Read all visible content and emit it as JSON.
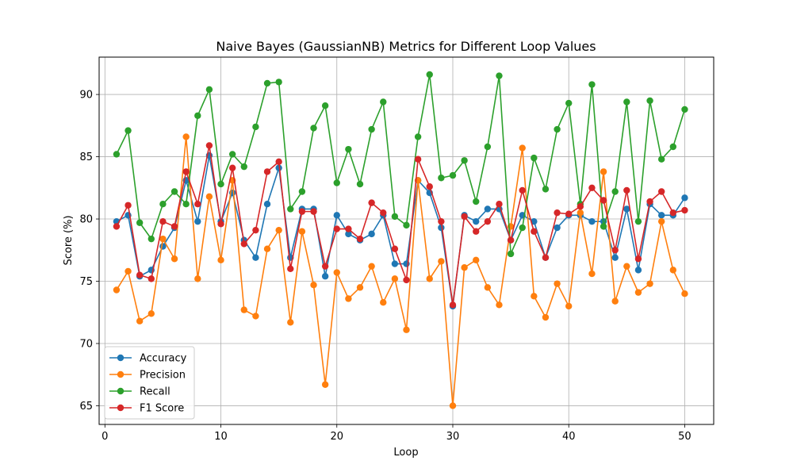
{
  "chart_data": {
    "type": "line",
    "title": "Naive Bayes (GaussianNB) Metrics for Different Loop Values",
    "xlabel": "Loop",
    "ylabel": "Score (%)",
    "xlim": [
      -0.5,
      52.5
    ],
    "ylim": [
      63.5,
      93.0
    ],
    "xticks": [
      0,
      10,
      20,
      30,
      40,
      50
    ],
    "yticks": [
      65,
      70,
      75,
      80,
      85,
      90
    ],
    "grid": true,
    "legend_position": "lower-left",
    "x": [
      1,
      2,
      3,
      4,
      5,
      6,
      7,
      8,
      9,
      10,
      11,
      12,
      13,
      14,
      15,
      16,
      17,
      18,
      19,
      20,
      21,
      22,
      23,
      24,
      25,
      26,
      27,
      28,
      29,
      30,
      31,
      32,
      33,
      34,
      35,
      36,
      37,
      38,
      39,
      40,
      41,
      42,
      43,
      44,
      45,
      46,
      47,
      48,
      49,
      50
    ],
    "series": [
      {
        "name": "Accuracy",
        "color": "#1f77b4",
        "values": [
          79.8,
          80.3,
          75.4,
          75.9,
          77.8,
          79.3,
          83.1,
          79.8,
          85.1,
          79.8,
          82.1,
          78.3,
          76.9,
          81.2,
          84.1,
          76.9,
          80.8,
          80.8,
          75.4,
          80.3,
          78.8,
          78.3,
          78.8,
          80.3,
          76.4,
          76.4,
          83.1,
          82.1,
          79.3,
          73.0,
          80.3,
          79.8,
          80.8,
          80.8,
          78.3,
          80.3,
          79.8,
          76.9,
          79.3,
          80.3,
          80.3,
          79.8,
          79.8,
          76.9,
          80.8,
          75.9,
          81.2,
          80.3,
          80.3,
          81.7
        ]
      },
      {
        "name": "Precision",
        "color": "#ff7f0e",
        "values": [
          74.3,
          75.8,
          71.8,
          72.4,
          78.4,
          76.8,
          86.6,
          75.2,
          81.8,
          76.7,
          83.1,
          72.7,
          72.2,
          77.6,
          79.1,
          71.7,
          79.0,
          74.7,
          66.7,
          75.7,
          73.6,
          74.5,
          76.2,
          73.3,
          75.2,
          71.1,
          83.1,
          75.2,
          76.6,
          65.0,
          76.1,
          76.7,
          74.5,
          73.1,
          79.4,
          85.7,
          73.8,
          72.1,
          74.8,
          73.0,
          80.5,
          75.6,
          83.8,
          73.4,
          76.2,
          74.1,
          74.8,
          79.8,
          75.9,
          74.0
        ]
      },
      {
        "name": "Recall",
        "color": "#2ca02c",
        "values": [
          85.2,
          87.1,
          79.7,
          78.4,
          81.2,
          82.2,
          81.2,
          88.3,
          90.4,
          82.8,
          85.2,
          84.2,
          87.4,
          90.9,
          91.0,
          80.8,
          82.2,
          87.3,
          89.1,
          82.9,
          85.6,
          82.8,
          87.2,
          89.4,
          80.2,
          79.5,
          86.6,
          91.6,
          83.3,
          83.5,
          84.7,
          81.4,
          85.8,
          91.5,
          77.2,
          79.3,
          84.9,
          82.4,
          87.2,
          89.3,
          81.2,
          90.8,
          79.4,
          82.2,
          89.4,
          79.8,
          89.5,
          84.8,
          85.8,
          88.8
        ]
      },
      {
        "name": "F1 Score",
        "color": "#d62728",
        "values": [
          79.4,
          81.1,
          75.5,
          75.2,
          79.8,
          79.4,
          83.8,
          81.2,
          85.9,
          79.6,
          84.1,
          78.0,
          79.1,
          83.8,
          84.6,
          76.0,
          80.6,
          80.6,
          76.2,
          79.2,
          79.2,
          78.4,
          81.3,
          80.5,
          77.6,
          75.1,
          84.8,
          82.6,
          79.8,
          73.1,
          80.2,
          79.0,
          79.8,
          81.2,
          78.3,
          82.3,
          79.0,
          76.9,
          80.5,
          80.4,
          81.0,
          82.5,
          81.5,
          77.5,
          82.3,
          76.8,
          81.4,
          82.2,
          80.5,
          80.7
        ]
      }
    ]
  }
}
